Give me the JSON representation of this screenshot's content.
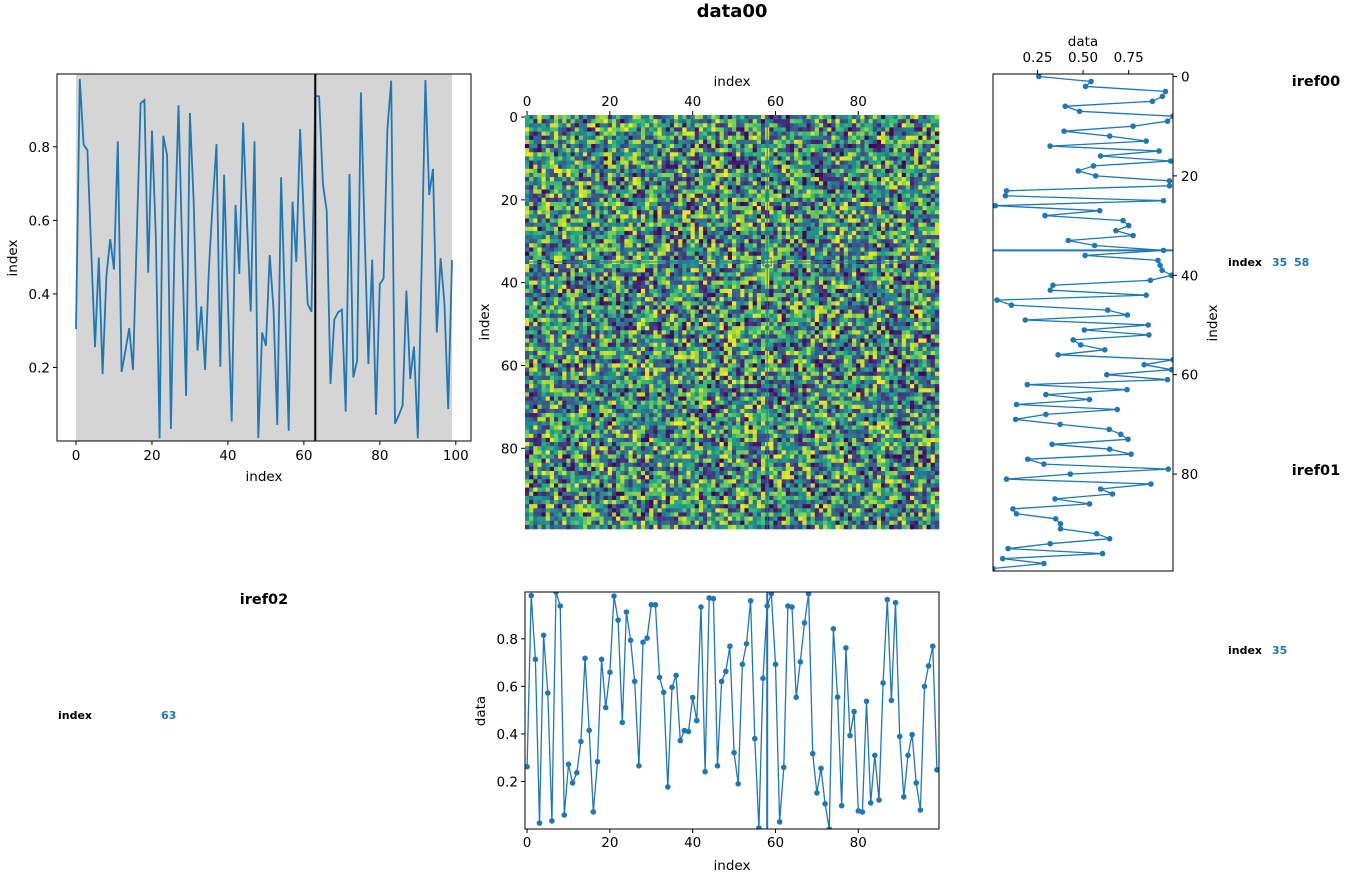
{
  "figure": {
    "title": "data00",
    "annotations": {
      "iref00": "iref00",
      "iref01": "iref01",
      "iref02": "iref02",
      "readout_right_top": {
        "label": "index",
        "values": [
          "35",
          "58"
        ]
      },
      "readout_right_bottom": {
        "label": "index",
        "value": "35"
      },
      "readout_left": {
        "label": "index",
        "value": "63"
      }
    },
    "colors": {
      "line": "#1f77b4",
      "span": "#d5d5d5",
      "cursor": "#000000"
    }
  },
  "chart_data": [
    {
      "id": "top-left",
      "type": "line",
      "xlabel": "index",
      "ylabel": "index",
      "xlim": [
        -5,
        104
      ],
      "ylim": [
        0.0,
        0.998
      ],
      "xticks": [
        "0",
        "20",
        "40",
        "60",
        "80",
        "100"
      ],
      "yticks": [
        "0.2",
        "0.4",
        "0.6",
        "0.8"
      ],
      "shaded_span": [
        0,
        99
      ],
      "vline": 63,
      "values": [
        0.304,
        0.984,
        0.806,
        0.791,
        0.52,
        0.255,
        0.499,
        0.182,
        0.449,
        0.549,
        0.466,
        0.815,
        0.188,
        0.245,
        0.307,
        0.193,
        0.558,
        0.918,
        0.927,
        0.458,
        0.844,
        0.558,
        0.007,
        0.83,
        0.777,
        0.033,
        0.558,
        0.913,
        0.513,
        0.123,
        0.892,
        0.649,
        0.246,
        0.366,
        0.193,
        0.468,
        0.649,
        0.807,
        0.202,
        0.724,
        0.377,
        0.053,
        0.642,
        0.454,
        0.866,
        0.603,
        0.352,
        0.815,
        0.008,
        0.295,
        0.259,
        0.506,
        0.359,
        0.044,
        0.717,
        0.377,
        0.028,
        0.651,
        0.487,
        0.848,
        0.603,
        0.372,
        0.351,
        0.939,
        0.937,
        0.699,
        0.626,
        0.155,
        0.33,
        0.35,
        0.357,
        0.08,
        0.726,
        0.173,
        0.218,
        0.948,
        0.558,
        0.209,
        0.493,
        0.071,
        0.427,
        0.442,
        0.848,
        0.98,
        0.047,
        0.07,
        0.097,
        0.409,
        0.169,
        0.257,
        0.007,
        0.468,
        0.982,
        0.669,
        0.74,
        0.295,
        0.497,
        0.377,
        0.087,
        0.492
      ]
    },
    {
      "id": "image",
      "type": "heatmap",
      "xlabel": "index",
      "ylabel": "index",
      "shape": [
        100,
        100
      ],
      "colormap": "viridis",
      "vmin": 0,
      "vmax": 1,
      "xticks": [
        "0",
        "20",
        "40",
        "60",
        "80"
      ],
      "yticks": [
        "0",
        "20",
        "40",
        "60",
        "80"
      ],
      "crosshair": {
        "row": 35,
        "col": 58
      }
    },
    {
      "id": "right",
      "type": "line",
      "orientation": "vertical",
      "xlabel": "data",
      "ylabel": "index",
      "xlim": [
        0.006,
        0.993
      ],
      "ylim": [
        99.5,
        -0.5
      ],
      "xticks": [
        "0.25",
        "0.50",
        "0.75"
      ],
      "yticks": [
        "0",
        "20",
        "40",
        "60",
        "80"
      ],
      "hline": 35,
      "markers": true,
      "values": [
        0.257,
        0.544,
        0.513,
        0.952,
        0.935,
        0.88,
        0.402,
        0.481,
        0.993,
        0.963,
        0.774,
        0.396,
        0.646,
        0.846,
        0.319,
        0.917,
        0.596,
        0.98,
        0.557,
        0.474,
        0.569,
        0.974,
        0.974,
        0.08,
        0.074,
        0.941,
        0.019,
        0.591,
        0.291,
        0.719,
        0.75,
        0.68,
        0.774,
        0.419,
        0.563,
        0.941,
        0.511,
        0.911,
        0.922,
        0.933,
        0.985,
        0.869,
        0.335,
        0.32,
        0.846,
        0.028,
        0.107,
        0.635,
        0.743,
        0.183,
        0.857,
        0.507,
        0.861,
        0.446,
        0.487,
        0.619,
        0.363,
        0.993,
        0.835,
        0.985,
        0.63,
        0.963,
        0.194,
        0.741,
        0.296,
        0.535,
        0.135,
        0.687,
        0.296,
        0.13,
        0.374,
        0.643,
        0.706,
        0.746,
        0.33,
        0.646,
        0.763,
        0.196,
        0.285,
        0.967,
        0.43,
        0.08,
        0.872,
        0.596,
        0.661,
        0.346,
        0.535,
        0.115,
        0.135,
        0.35,
        0.376,
        0.376,
        0.574,
        0.646,
        0.319,
        0.089,
        0.607,
        0.059,
        0.285,
        0.006
      ]
    },
    {
      "id": "bottom",
      "type": "line",
      "xlabel": "index",
      "ylabel": "data",
      "xlim": [
        -0.5,
        99.5
      ],
      "ylim": [
        0.0,
        0.997
      ],
      "xticks": [
        "0",
        "20",
        "40",
        "60",
        "80"
      ],
      "yticks": [
        "0.2",
        "0.4",
        "0.6",
        "0.8"
      ],
      "vline": 58,
      "markers": true,
      "values": [
        0.262,
        0.982,
        0.714,
        0.025,
        0.815,
        0.572,
        0.034,
        0.997,
        0.938,
        0.059,
        0.272,
        0.194,
        0.237,
        0.368,
        0.718,
        0.415,
        0.072,
        0.283,
        0.714,
        0.511,
        0.659,
        0.98,
        0.879,
        0.448,
        0.913,
        0.794,
        0.621,
        0.266,
        0.786,
        0.803,
        0.943,
        0.943,
        0.638,
        0.575,
        0.177,
        0.596,
        0.646,
        0.372,
        0.414,
        0.41,
        0.553,
        0.456,
        0.934,
        0.241,
        0.972,
        0.969,
        0.266,
        0.621,
        0.663,
        0.769,
        0.321,
        0.19,
        0.693,
        0.779,
        0.96,
        0.38,
        0.004,
        0.634,
        0.938,
        0.99,
        0.693,
        0.03,
        0.259,
        0.938,
        0.934,
        0.554,
        0.703,
        0.867,
        0.99,
        0.317,
        0.152,
        0.255,
        0.106,
        0.0,
        0.842,
        0.555,
        0.098,
        0.762,
        0.393,
        0.494,
        0.076,
        0.072,
        0.537,
        0.11,
        0.31,
        0.122,
        0.614,
        0.965,
        0.541,
        0.952,
        0.389,
        0.135,
        0.31,
        0.397,
        0.194,
        0.08,
        0.6,
        0.686,
        0.769,
        0.249
      ]
    }
  ]
}
